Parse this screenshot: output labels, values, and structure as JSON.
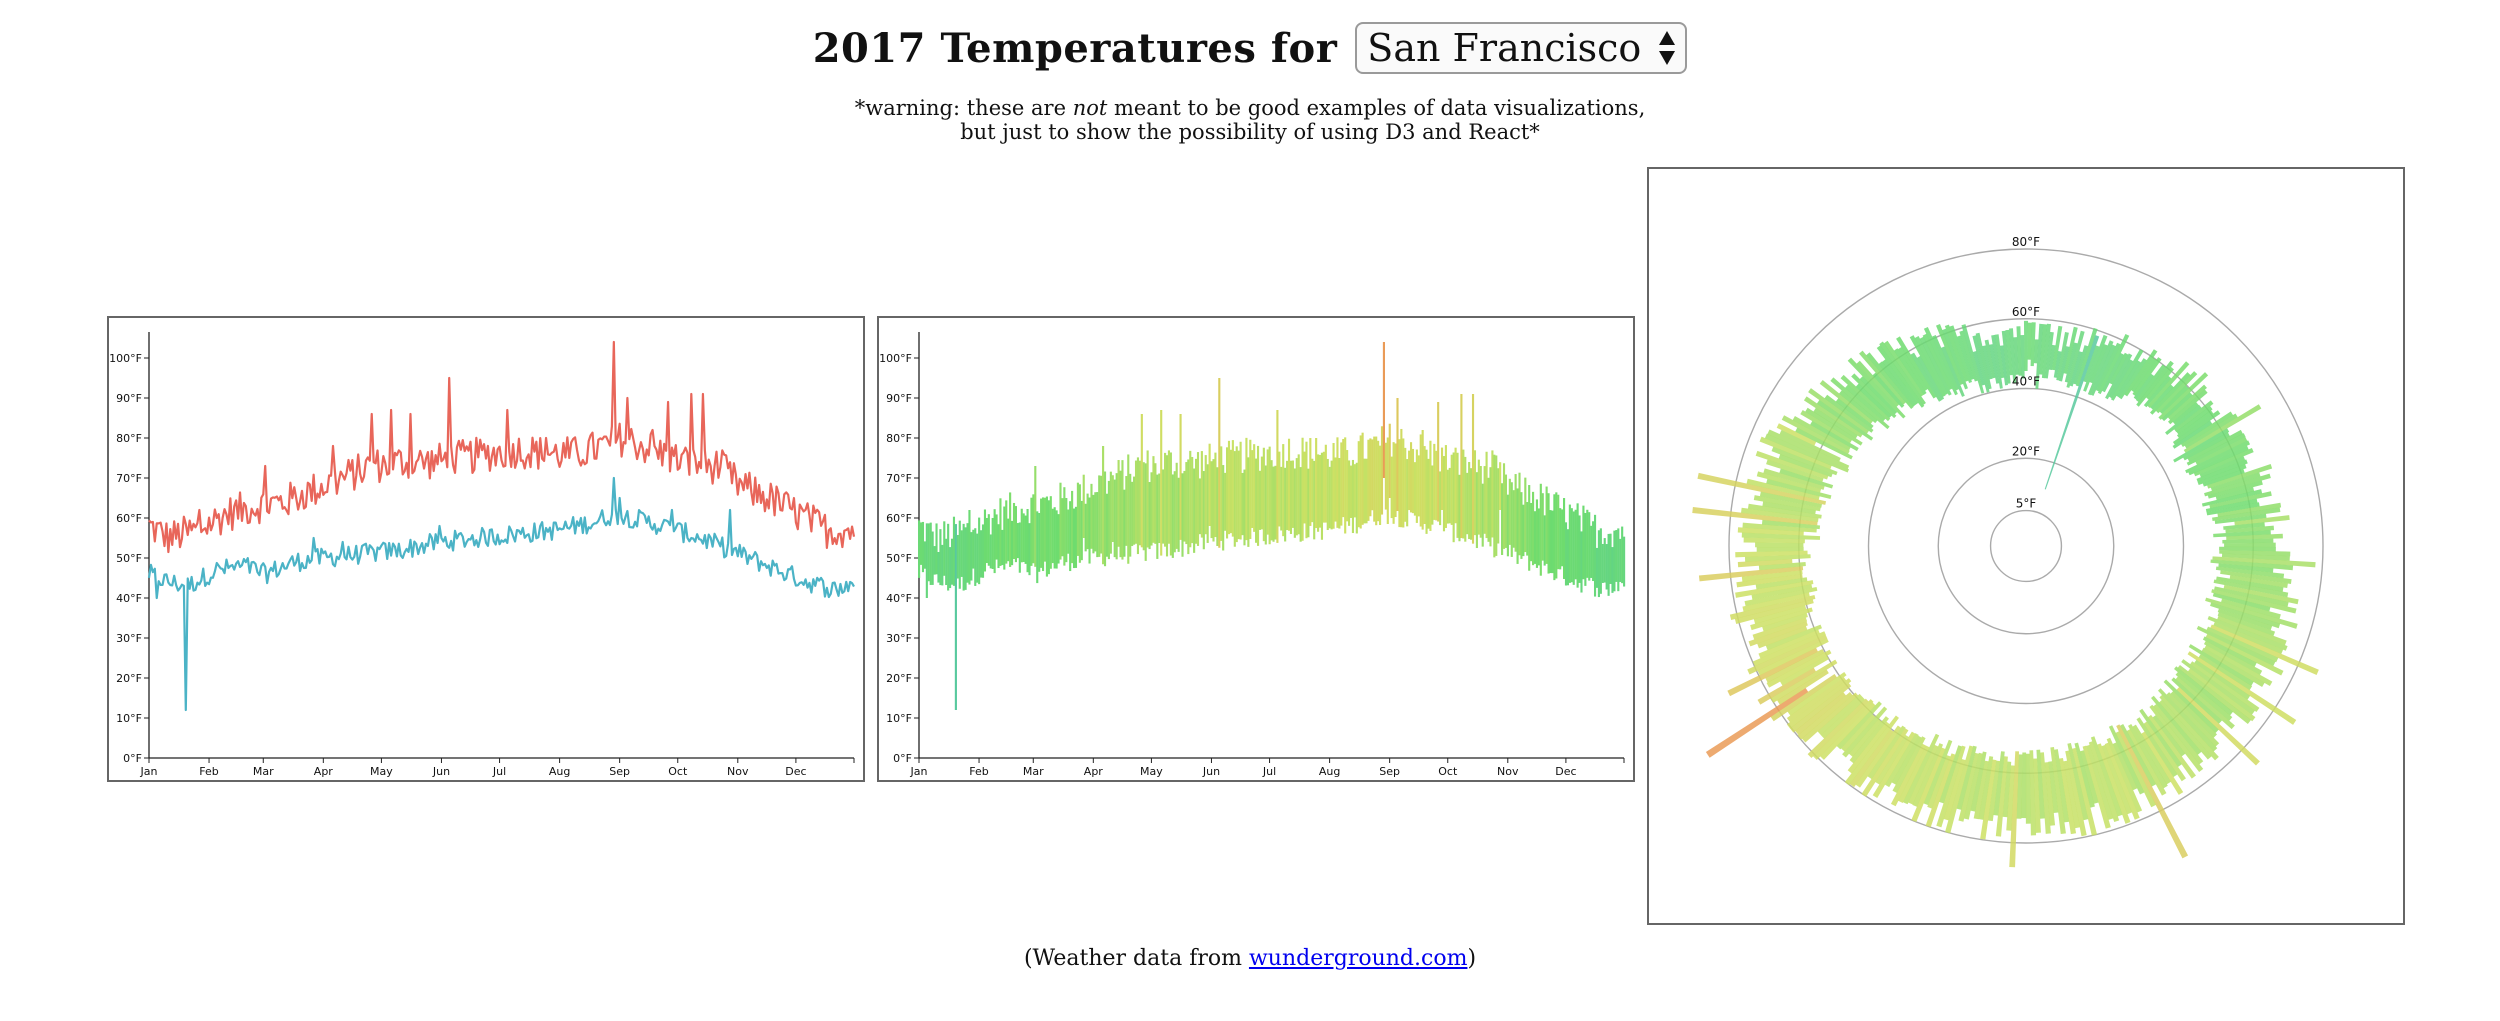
{
  "header": {
    "title": "2017 Temperatures for",
    "city_selected": "San Francisco"
  },
  "warning": {
    "line1_before": "*warning: these are ",
    "line1_emphasis": "not",
    "line1_after": " meant to be good examples of data visualizations,",
    "line2": "but just to show the possibility of using D3 and React*"
  },
  "footer": {
    "prefix": "(Weather data from ",
    "link_text": "wunderground.com",
    "suffix": ")"
  },
  "colors": {
    "high": "#e8665a",
    "low": "#4bb3c6",
    "axis": "#222222",
    "panel_border": "#666666",
    "ring": "#aaaaaa"
  },
  "chart_data": [
    {
      "type": "line",
      "series": [
        {
          "name": "",
          "key": "high"
        },
        {
          "name": "",
          "key": "low"
        }
      ],
      "x_ticks": [
        "Jan",
        "Feb",
        "Mar",
        "Apr",
        "May",
        "Jun",
        "Jul",
        "Aug",
        "Sep",
        "Oct",
        "Nov",
        "Dec"
      ],
      "y_ticks": [
        "0°F",
        "10°F",
        "20°F",
        "30°F",
        "40°F",
        "50°F",
        "60°F",
        "70°F",
        "80°F",
        "90°F",
        "100°F"
      ],
      "ylim": [
        0,
        105
      ],
      "high_anchors": [
        [
          0,
          58
        ],
        [
          10,
          55
        ],
        [
          25,
          57
        ],
        [
          40,
          61
        ],
        [
          55,
          63
        ],
        [
          70,
          64
        ],
        [
          85,
          67
        ],
        [
          100,
          70
        ],
        [
          115,
          73
        ],
        [
          130,
          74
        ],
        [
          145,
          74
        ],
        [
          160,
          75
        ],
        [
          175,
          76
        ],
        [
          190,
          77
        ],
        [
          205,
          76
        ],
        [
          220,
          76
        ],
        [
          235,
          78
        ],
        [
          245,
          80
        ],
        [
          255,
          78
        ],
        [
          270,
          75
        ],
        [
          285,
          73
        ],
        [
          295,
          73
        ],
        [
          305,
          68
        ],
        [
          320,
          65
        ],
        [
          335,
          61
        ],
        [
          350,
          57
        ],
        [
          364,
          57
        ]
      ],
      "high_spikes": [
        [
          26,
          62
        ],
        [
          60,
          73
        ],
        [
          95,
          78
        ],
        [
          115,
          86
        ],
        [
          125,
          87
        ],
        [
          135,
          86
        ],
        [
          155,
          95
        ],
        [
          185,
          87
        ],
        [
          205,
          80
        ],
        [
          240,
          104
        ],
        [
          247,
          90
        ],
        [
          260,
          82
        ],
        [
          268,
          89
        ],
        [
          280,
          91
        ],
        [
          286,
          91
        ]
      ],
      "low_anchors": [
        [
          0,
          46
        ],
        [
          10,
          44
        ],
        [
          20,
          43
        ],
        [
          35,
          47
        ],
        [
          50,
          48
        ],
        [
          60,
          46
        ],
        [
          75,
          49
        ],
        [
          90,
          50
        ],
        [
          110,
          51
        ],
        [
          130,
          52
        ],
        [
          150,
          54
        ],
        [
          170,
          55
        ],
        [
          190,
          56
        ],
        [
          210,
          57
        ],
        [
          230,
          59
        ],
        [
          240,
          61
        ],
        [
          250,
          60
        ],
        [
          265,
          58
        ],
        [
          285,
          55
        ],
        [
          300,
          52
        ],
        [
          320,
          48
        ],
        [
          340,
          44
        ],
        [
          355,
          42
        ],
        [
          364,
          44
        ]
      ],
      "low_spikes": [
        [
          4,
          40
        ],
        [
          19,
          12
        ],
        [
          85,
          55
        ],
        [
          100,
          54
        ],
        [
          150,
          58
        ],
        [
          240,
          70
        ],
        [
          243,
          65
        ],
        [
          270,
          62
        ],
        [
          300,
          62
        ]
      ]
    },
    {
      "type": "bar",
      "x_ticks": [
        "Jan",
        "Feb",
        "Mar",
        "Apr",
        "May",
        "Jun",
        "Jul",
        "Aug",
        "Sep",
        "Oct",
        "Nov",
        "Dec"
      ],
      "y_ticks": [
        "0°F",
        "10°F",
        "20°F",
        "30°F",
        "40°F",
        "50°F",
        "60°F",
        "70°F",
        "80°F",
        "90°F",
        "100°F"
      ],
      "ylim": [
        0,
        105
      ],
      "description_of_values": "Each day drawn as a bar from daily low to daily high; same daily values as chart 1"
    },
    {
      "type": "bar",
      "subtype": "radial",
      "ring_labels": [
        "5°F",
        "20°F",
        "40°F",
        "60°F",
        "80°F"
      ],
      "ring_values": [
        5,
        20,
        40,
        60,
        80
      ],
      "rlim": [
        0,
        80
      ]
    }
  ]
}
